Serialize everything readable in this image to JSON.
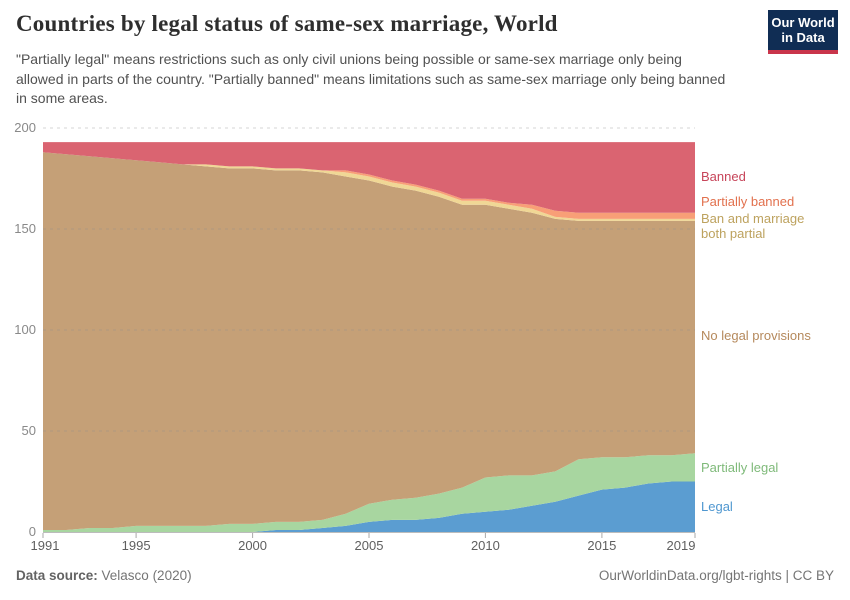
{
  "header": {
    "title": "Countries by legal status of same-sex marriage, World",
    "subtitle": "\"Partially legal\" means restrictions such as only civil unions being possible or same-sex marriage only being allowed in parts of the country. \"Partially banned\" means limitations such as same-sex marriage only being banned in some areas.",
    "logo": {
      "line1": "Our World",
      "line2": "in Data",
      "bg_color": "#102d54",
      "accent_color": "#c9354b"
    }
  },
  "chart_data": {
    "type": "area",
    "stacked": true,
    "title": "Countries by legal status of same-sex marriage, World",
    "xlabel": "",
    "ylabel": "",
    "ylim": [
      0,
      200
    ],
    "grid": "dashed horizontal",
    "legend_position": "right",
    "x": [
      1991,
      1992,
      1993,
      1994,
      1995,
      1996,
      1997,
      1998,
      1999,
      2000,
      2001,
      2002,
      2003,
      2004,
      2005,
      2006,
      2007,
      2008,
      2009,
      2010,
      2011,
      2012,
      2013,
      2014,
      2015,
      2016,
      2017,
      2018,
      2019
    ],
    "x_ticks": [
      1991,
      1995,
      2000,
      2005,
      2010,
      2015,
      2019
    ],
    "y_ticks": [
      0,
      50,
      100,
      150,
      200
    ],
    "series": [
      {
        "key": "legal",
        "name": "Legal",
        "color": "#5b9dd1",
        "label_color": "#4f97d0",
        "values": [
          0,
          0,
          0,
          0,
          0,
          0,
          0,
          0,
          0,
          0,
          1,
          1,
          2,
          3,
          5,
          6,
          6,
          7,
          9,
          10,
          11,
          13,
          15,
          18,
          21,
          22,
          24,
          25,
          25
        ]
      },
      {
        "key": "partially_legal",
        "name": "Partially legal",
        "color": "#a8d6a0",
        "label_color": "#7fba7a",
        "values": [
          1,
          1,
          2,
          2,
          3,
          3,
          3,
          3,
          4,
          4,
          4,
          4,
          4,
          6,
          9,
          10,
          11,
          12,
          13,
          17,
          17,
          15,
          15,
          18,
          16,
          15,
          14,
          13,
          14
        ]
      },
      {
        "key": "no_legal_provisions",
        "name": "No legal provisions",
        "color": "#c5a077",
        "label_color": "#b5895c",
        "values": [
          187,
          186,
          184,
          183,
          181,
          180,
          179,
          178,
          176,
          176,
          174,
          174,
          172,
          167,
          160,
          155,
          152,
          147,
          140,
          135,
          132,
          130,
          125,
          118,
          117,
          117,
          116,
          116,
          115
        ]
      },
      {
        "key": "ban_marriage_partial",
        "name": "Ban and marriage both partial",
        "color": "#f0d795",
        "label_color": "#bda25e",
        "values": [
          0,
          0,
          0,
          0,
          0,
          0,
          0,
          1,
          1,
          1,
          1,
          1,
          1,
          2,
          2,
          2,
          2,
          2,
          2,
          2,
          2,
          2,
          1,
          1,
          1,
          1,
          1,
          1,
          1
        ]
      },
      {
        "key": "partially_banned",
        "name": "Partially banned",
        "color": "#f89f77",
        "label_color": "#e2714e",
        "values": [
          0,
          0,
          0,
          0,
          0,
          0,
          0,
          0,
          0,
          0,
          0,
          0,
          0,
          1,
          1,
          1,
          1,
          1,
          1,
          1,
          1,
          2,
          3,
          3,
          3,
          3,
          3,
          3,
          3
        ]
      },
      {
        "key": "banned",
        "name": "Banned",
        "color": "#da6471",
        "label_color": "#c7455a",
        "values": [
          5,
          6,
          7,
          8,
          9,
          10,
          11,
          11,
          12,
          12,
          13,
          13,
          14,
          14,
          16,
          19,
          21,
          24,
          28,
          28,
          30,
          31,
          34,
          35,
          35,
          35,
          35,
          35,
          35
        ]
      }
    ]
  },
  "footer": {
    "source_label": "Data source:",
    "source_value": " Velasco (2020)",
    "link": "OurWorldinData.org/lgbt-rights | CC BY"
  }
}
